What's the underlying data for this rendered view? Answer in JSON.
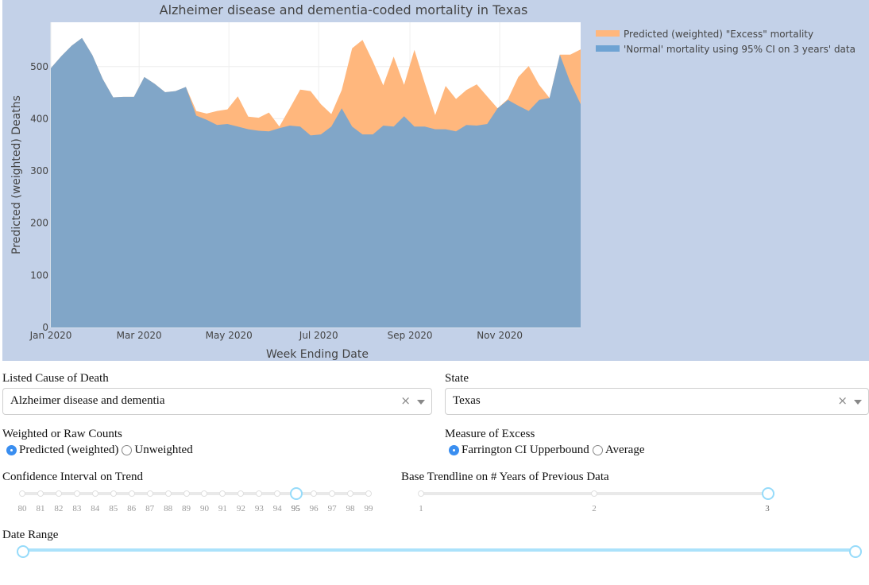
{
  "chart": {
    "title": "Alzheimer disease and dementia-coded mortality in Texas",
    "xlabel": "Week Ending Date",
    "ylabel": "Predicted (weighted) Deaths",
    "legend": [
      {
        "label": "Predicted (weighted) \"Excess\" mortality",
        "color": "#ffb77d"
      },
      {
        "label": "'Normal' mortality using 95% CI on 3 years' data",
        "color": "#6ea3d3"
      }
    ]
  },
  "chart_data": {
    "type": "area",
    "title": "Alzheimer disease and dementia-coded mortality in Texas",
    "xlabel": "Week Ending Date",
    "ylabel": "Predicted (weighted) Deaths",
    "ylim": [
      0,
      585
    ],
    "xlim": [
      "2020-01-04",
      "2020-12-26"
    ],
    "x_ticks": [
      "Jan 2020",
      "Mar 2020",
      "May 2020",
      "Jul 2020",
      "Sep 2020",
      "Nov 2020"
    ],
    "y_ticks": [
      0,
      100,
      200,
      300,
      400,
      500
    ],
    "grid": true,
    "legend_position": "top-right",
    "x": [
      "2020-01-04",
      "2020-01-11",
      "2020-01-18",
      "2020-01-25",
      "2020-02-01",
      "2020-02-08",
      "2020-02-15",
      "2020-02-22",
      "2020-02-29",
      "2020-03-07",
      "2020-03-14",
      "2020-03-21",
      "2020-03-28",
      "2020-04-04",
      "2020-04-11",
      "2020-04-18",
      "2020-04-25",
      "2020-05-02",
      "2020-05-09",
      "2020-05-16",
      "2020-05-23",
      "2020-05-30",
      "2020-06-06",
      "2020-06-13",
      "2020-06-20",
      "2020-06-27",
      "2020-07-04",
      "2020-07-11",
      "2020-07-18",
      "2020-07-25",
      "2020-08-01",
      "2020-08-08",
      "2020-08-15",
      "2020-08-22",
      "2020-08-29",
      "2020-09-05",
      "2020-09-12",
      "2020-09-19",
      "2020-09-26",
      "2020-10-03",
      "2020-10-10",
      "2020-10-17",
      "2020-10-24",
      "2020-10-31",
      "2020-11-07",
      "2020-11-14",
      "2020-11-21",
      "2020-11-28",
      "2020-12-05",
      "2020-12-12",
      "2020-12-19",
      "2020-12-26"
    ],
    "series": [
      {
        "name": "Predicted (weighted) \"Excess\" mortality",
        "values": [
          497,
          520,
          540,
          555,
          522,
          476,
          441,
          442,
          442,
          480,
          467,
          451,
          453,
          461,
          415,
          410,
          415,
          418,
          443,
          404,
          402,
          412,
          385,
          420,
          456,
          453,
          428,
          409,
          455,
          535,
          551,
          510,
          464,
          519,
          465,
          532,
          468,
          407,
          463,
          438,
          455,
          466,
          443,
          420,
          438,
          480,
          501,
          465,
          440,
          523,
          523,
          533
        ]
      },
      {
        "name": "'Normal' mortality using 95% CI on 3 years' data",
        "values": [
          497,
          520,
          540,
          555,
          522,
          476,
          441,
          442,
          442,
          480,
          467,
          451,
          453,
          461,
          406,
          398,
          388,
          390,
          385,
          380,
          377,
          376,
          382,
          387,
          385,
          368,
          370,
          385,
          420,
          385,
          370,
          370,
          387,
          385,
          405,
          385,
          385,
          380,
          380,
          376,
          388,
          387,
          390,
          420,
          436,
          425,
          415,
          436,
          440,
          523,
          470,
          428
        ]
      }
    ]
  },
  "controls": {
    "cause_label": "Listed Cause of Death",
    "cause_value": "Alzheimer disease and dementia",
    "state_label": "State",
    "state_value": "Texas",
    "clear_glyph": "×",
    "weight_label": "Weighted or Raw Counts",
    "weight_options": [
      "Predicted (weighted)",
      "Unweighted"
    ],
    "weight_selected": 0,
    "excess_label": "Measure of Excess",
    "excess_options": [
      "Farrington CI Upperbound",
      "Average"
    ],
    "excess_selected": 0,
    "ci_label": "Confidence Interval on Trend",
    "ci_marks": [
      "80",
      "81",
      "82",
      "83",
      "84",
      "85",
      "86",
      "87",
      "88",
      "89",
      "90",
      "91",
      "92",
      "93",
      "94",
      "95",
      "96",
      "97",
      "98",
      "99"
    ],
    "ci_value": "95",
    "years_label": "Base Trendline on # Years of Previous Data",
    "years_marks": [
      "1",
      "2",
      "3"
    ],
    "years_value": "3",
    "date_label": "Date Range",
    "date_range": [
      0,
      1
    ]
  }
}
